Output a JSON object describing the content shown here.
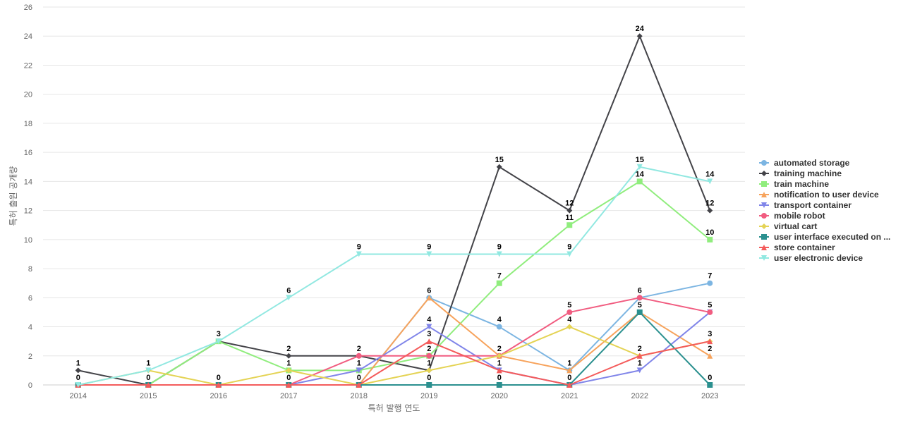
{
  "chart_data": {
    "type": "line",
    "x": [
      2014,
      2015,
      2016,
      2017,
      2018,
      2019,
      2020,
      2021,
      2022,
      2023
    ],
    "xlabel": "특허 발행 연도",
    "ylabel": "특허 출원 공개량",
    "ylim": [
      0,
      26
    ],
    "yticks": [
      0,
      2,
      4,
      6,
      8,
      10,
      12,
      14,
      16,
      18,
      20,
      22,
      24,
      26
    ],
    "grid": true,
    "legend_position": "right",
    "series": [
      {
        "name": "automated storage",
        "color": "#7cb5e2",
        "marker": "circle",
        "values": [
          0,
          0,
          0,
          0,
          0,
          6,
          4,
          1,
          6,
          7
        ]
      },
      {
        "name": "training machine",
        "color": "#434348",
        "marker": "diamond",
        "values": [
          1,
          0,
          3,
          2,
          2,
          1,
          15,
          12,
          24,
          12
        ]
      },
      {
        "name": "train machine",
        "color": "#90ed7d",
        "marker": "square",
        "values": [
          0,
          0,
          3,
          1,
          1,
          2,
          7,
          11,
          14,
          10
        ]
      },
      {
        "name": "notification to user device",
        "color": "#f7a35c",
        "marker": "triangle",
        "values": [
          0,
          0,
          0,
          0,
          0,
          6,
          2,
          1,
          5,
          2
        ]
      },
      {
        "name": "transport container",
        "color": "#8085e9",
        "marker": "triangle-down",
        "values": [
          0,
          0,
          0,
          0,
          1,
          4,
          1,
          0,
          1,
          5
        ]
      },
      {
        "name": "mobile robot",
        "color": "#f15c80",
        "marker": "circle",
        "values": [
          0,
          0,
          0,
          0,
          2,
          2,
          2,
          5,
          6,
          5
        ]
      },
      {
        "name": "virtual cart",
        "color": "#e4d354",
        "marker": "diamond",
        "values": [
          0,
          1,
          0,
          1,
          0,
          1,
          2,
          4,
          2,
          3
        ]
      },
      {
        "name": "user interface executed on ...",
        "color": "#2b908f",
        "marker": "square",
        "values": [
          0,
          0,
          0,
          0,
          0,
          0,
          0,
          0,
          5,
          0
        ]
      },
      {
        "name": "store container",
        "color": "#f45b5b",
        "marker": "triangle",
        "values": [
          0,
          0,
          0,
          0,
          0,
          3,
          1,
          0,
          2,
          3
        ]
      },
      {
        "name": "user electronic device",
        "color": "#91e8e1",
        "marker": "triangle-down",
        "values": [
          0,
          1,
          3,
          6,
          9,
          9,
          9,
          9,
          15,
          14
        ]
      }
    ],
    "data_labels": [
      {
        "series": 1,
        "index": 0,
        "text": "1"
      },
      {
        "series": 0,
        "index": 0,
        "text": "0"
      },
      {
        "series": 9,
        "index": 1,
        "text": "1"
      },
      {
        "series": 0,
        "index": 1,
        "text": "0"
      },
      {
        "series": 1,
        "index": 2,
        "text": "3"
      },
      {
        "series": 0,
        "index": 2,
        "text": "0"
      },
      {
        "series": 9,
        "index": 3,
        "text": "6"
      },
      {
        "series": 1,
        "index": 3,
        "text": "2"
      },
      {
        "series": 2,
        "index": 3,
        "text": "1"
      },
      {
        "series": 0,
        "index": 3,
        "text": "0"
      },
      {
        "series": 9,
        "index": 4,
        "text": "9"
      },
      {
        "series": 5,
        "index": 4,
        "text": "2"
      },
      {
        "series": 4,
        "index": 4,
        "text": "1"
      },
      {
        "series": 0,
        "index": 4,
        "text": "0"
      },
      {
        "series": 9,
        "index": 5,
        "text": "9"
      },
      {
        "series": 0,
        "index": 5,
        "text": "6"
      },
      {
        "series": 4,
        "index": 5,
        "text": "4"
      },
      {
        "series": 8,
        "index": 5,
        "text": "3"
      },
      {
        "series": 2,
        "index": 5,
        "text": "2"
      },
      {
        "series": 1,
        "index": 5,
        "text": "1"
      },
      {
        "series": 7,
        "index": 5,
        "text": "0"
      },
      {
        "series": 1,
        "index": 6,
        "text": "15"
      },
      {
        "series": 9,
        "index": 6,
        "text": "9"
      },
      {
        "series": 2,
        "index": 6,
        "text": "7"
      },
      {
        "series": 0,
        "index": 6,
        "text": "4"
      },
      {
        "series": 3,
        "index": 6,
        "text": "2"
      },
      {
        "series": 4,
        "index": 6,
        "text": "1"
      },
      {
        "series": 7,
        "index": 6,
        "text": "0"
      },
      {
        "series": 1,
        "index": 7,
        "text": "12"
      },
      {
        "series": 2,
        "index": 7,
        "text": "11"
      },
      {
        "series": 9,
        "index": 7,
        "text": "9"
      },
      {
        "series": 5,
        "index": 7,
        "text": "5"
      },
      {
        "series": 6,
        "index": 7,
        "text": "4"
      },
      {
        "series": 0,
        "index": 7,
        "text": "1"
      },
      {
        "series": 4,
        "index": 7,
        "text": "0"
      },
      {
        "series": 1,
        "index": 8,
        "text": "24"
      },
      {
        "series": 9,
        "index": 8,
        "text": "15"
      },
      {
        "series": 2,
        "index": 8,
        "text": "14"
      },
      {
        "series": 5,
        "index": 8,
        "text": "6"
      },
      {
        "series": 7,
        "index": 8,
        "text": "5"
      },
      {
        "series": 8,
        "index": 8,
        "text": "2"
      },
      {
        "series": 4,
        "index": 8,
        "text": "1"
      },
      {
        "series": 9,
        "index": 9,
        "text": "14"
      },
      {
        "series": 1,
        "index": 9,
        "text": "12"
      },
      {
        "series": 2,
        "index": 9,
        "text": "10"
      },
      {
        "series": 0,
        "index": 9,
        "text": "7"
      },
      {
        "series": 5,
        "index": 9,
        "text": "5"
      },
      {
        "series": 8,
        "index": 9,
        "text": "3"
      },
      {
        "series": 3,
        "index": 9,
        "text": "2"
      },
      {
        "series": 7,
        "index": 9,
        "text": "0"
      }
    ]
  }
}
